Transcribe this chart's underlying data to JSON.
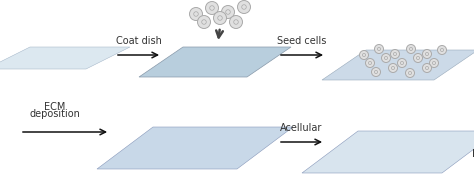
{
  "bg_color": "#ffffff",
  "plate1_color": "#dce8f0",
  "plate2_color": "#b8cedd",
  "plate3_color": "#ccdae8",
  "plate4_color": "#c8d8e8",
  "plate5_color": "#d8e4ee",
  "cell_border": "#aaaaaa",
  "cell_fill": "#e0e0e0",
  "network_color": "#8899bb",
  "arrow_color": "#111111",
  "text_color": "#333333",
  "label_coat": "Coat dish",
  "label_seed": "Seed cells",
  "label_ecm_dep1": "ECM",
  "label_ecm_dep2": "deposition",
  "label_acellular": "Acellular",
  "label_ecm": "ECM",
  "figsize": [
    4.74,
    1.95
  ],
  "dpi": 100
}
